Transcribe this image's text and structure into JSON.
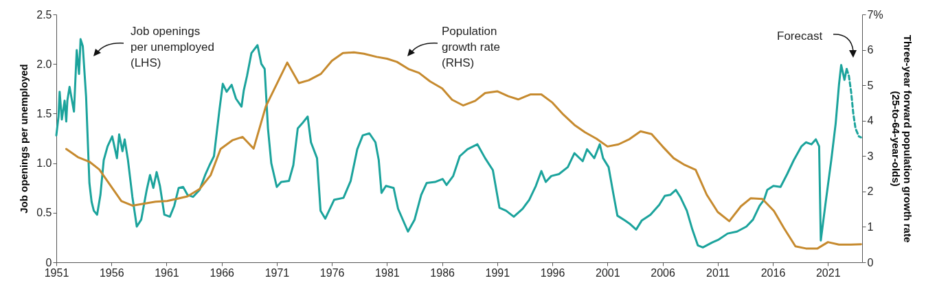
{
  "chart_data": {
    "type": "line",
    "ylabel": "Job openings per unemployed",
    "y2label": "Three-year forward population growth rate\n(25-to-64-year-olds)",
    "annotations": [
      "Job openings\nper unemployed\n(LHS)",
      "Population\ngrowth rate\n(RHS)",
      "Forecast"
    ],
    "xlim": [
      1951,
      2024.1
    ],
    "xticks": [
      1951,
      1956,
      1961,
      1966,
      1971,
      1976,
      1981,
      1986,
      1991,
      1996,
      2001,
      2006,
      2011,
      2016,
      2021
    ],
    "ylim": [
      0,
      2.5
    ],
    "yticks": [
      0,
      0.5,
      {
        "value": 1,
        "label": "1.0"
      },
      1.5,
      {
        "value": 2,
        "label": "2.0"
      },
      2.5
    ],
    "y2lim": [
      0,
      7
    ],
    "y2ticks": [
      0,
      1,
      2,
      3,
      4,
      5,
      6,
      {
        "value": 7,
        "label": "7%"
      }
    ],
    "grid": false,
    "marker": "none",
    "series": [
      {
        "color": "#1ba39c",
        "line_style": "solid",
        "x": [
          1951.0,
          1951.2,
          1951.3,
          1951.5,
          1951.75,
          1951.9,
          1952.0,
          1952.2,
          1952.6,
          1952.85,
          1953.06,
          1953.2,
          1953.4,
          1953.7,
          1954.0,
          1954.2,
          1954.4,
          1954.7,
          1955.0,
          1955.3,
          1955.65,
          1956.07,
          1956.5,
          1956.7,
          1957.0,
          1957.2,
          1957.5,
          1957.9,
          1958.3,
          1958.7,
          1959.2,
          1959.5,
          1959.8,
          1960.1,
          1960.4,
          1960.8,
          1961.3,
          1961.7,
          1962.1,
          1962.5,
          1962.9,
          1963.4,
          1964.0,
          1964.5,
          1964.9,
          1965.3,
          1965.8,
          1966.1,
          1966.45,
          1966.9,
          1967.3,
          1967.8,
          1968.0,
          1968.3,
          1968.7,
          1969.25,
          1969.6,
          1969.9,
          1970.2,
          1970.5,
          1971.0,
          1971.4,
          1972.1,
          1972.5,
          1972.9,
          1973.3,
          1973.8,
          1974.1,
          1974.65,
          1974.97,
          1975.4,
          1976.2,
          1977.05,
          1977.7,
          1978.3,
          1978.8,
          1979.4,
          1979.95,
          1980.25,
          1980.5,
          1980.9,
          1981.6,
          1982.0,
          1982.9,
          1983.5,
          1984.1,
          1984.6,
          1985.35,
          1986.05,
          1986.4,
          1987.0,
          1987.6,
          1988.3,
          1989.2,
          1989.9,
          1990.6,
          1991.2,
          1991.8,
          1992.5,
          1993.3,
          1993.9,
          1994.5,
          1995.0,
          1995.4,
          1995.9,
          1996.6,
          1997.4,
          1998.0,
          1998.75,
          1999.15,
          1999.8,
          2000.3,
          2000.6,
          2001.1,
          2001.55,
          2001.9,
          2002.6,
          2003.0,
          2003.6,
          2004.1,
          2004.9,
          2005.7,
          2006.2,
          2006.7,
          2007.2,
          2007.6,
          2008.2,
          2008.7,
          2009.2,
          2009.65,
          2010.5,
          2011.1,
          2011.9,
          2012.75,
          2013.6,
          2014.2,
          2014.8,
          2015.2,
          2015.5,
          2016.05,
          2016.7,
          2017.3,
          2017.9,
          2018.6,
          2019.0,
          2019.5,
          2019.9,
          2020.2,
          2020.35,
          2020.8,
          2021.3,
          2021.7,
          2022.0,
          2022.2,
          2022.5,
          2022.7
        ],
        "values": [
          1.28,
          1.47,
          1.72,
          1.44,
          1.63,
          1.42,
          1.63,
          1.77,
          1.52,
          2.14,
          1.9,
          2.25,
          2.18,
          1.67,
          0.8,
          0.61,
          0.52,
          0.48,
          0.68,
          1.03,
          1.17,
          1.27,
          1.05,
          1.29,
          1.12,
          1.24,
          1.03,
          0.66,
          0.36,
          0.43,
          0.73,
          0.88,
          0.75,
          0.91,
          0.77,
          0.48,
          0.46,
          0.57,
          0.75,
          0.76,
          0.68,
          0.66,
          0.73,
          0.88,
          0.98,
          1.07,
          1.54,
          1.8,
          1.72,
          1.79,
          1.65,
          1.57,
          1.73,
          1.88,
          2.11,
          2.19,
          2.0,
          1.95,
          1.35,
          1.0,
          0.76,
          0.81,
          0.82,
          0.98,
          1.35,
          1.4,
          1.47,
          1.21,
          1.05,
          0.52,
          0.44,
          0.63,
          0.65,
          0.82,
          1.14,
          1.28,
          1.3,
          1.21,
          1.03,
          0.7,
          0.77,
          0.75,
          0.54,
          0.31,
          0.43,
          0.68,
          0.8,
          0.81,
          0.84,
          0.78,
          0.87,
          1.07,
          1.14,
          1.19,
          1.05,
          0.93,
          0.55,
          0.52,
          0.46,
          0.54,
          0.63,
          0.77,
          0.92,
          0.81,
          0.87,
          0.89,
          0.96,
          1.1,
          1.02,
          1.14,
          1.05,
          1.19,
          1.05,
          0.96,
          0.68,
          0.47,
          0.42,
          0.39,
          0.33,
          0.42,
          0.48,
          0.58,
          0.67,
          0.68,
          0.73,
          0.66,
          0.52,
          0.33,
          0.17,
          0.15,
          0.2,
          0.23,
          0.29,
          0.31,
          0.36,
          0.43,
          0.57,
          0.63,
          0.73,
          0.77,
          0.76,
          0.89,
          1.03,
          1.17,
          1.21,
          1.19,
          1.24,
          1.17,
          0.22,
          0.61,
          1.03,
          1.4,
          1.79,
          1.99,
          1.84,
          1.95
        ]
      },
      {
        "color": "#1ba39c",
        "line_style": "dashed",
        "x": [
          2022.7,
          2022.9,
          2023.1,
          2023.3,
          2023.5,
          2023.8,
          2024.0
        ],
        "values": [
          1.95,
          1.88,
          1.72,
          1.5,
          1.35,
          1.27,
          1.26
        ]
      },
      {
        "color": "#c68a2e",
        "line_style": "solid",
        "axis": "y2",
        "x": [
          1951.9,
          1952.95,
          1954.0,
          1954.9,
          1956.9,
          1957.9,
          1960.0,
          1961.05,
          1962.9,
          1964.0,
          1965.0,
          1965.9,
          1967.0,
          1967.9,
          1968.9,
          1970.0,
          1971.95,
          1973.0,
          1973.9,
          1975.0,
          1976.0,
          1977.0,
          1978.0,
          1978.9,
          1980.07,
          1981.0,
          1981.9,
          1983.0,
          1983.9,
          1984.9,
          1986.0,
          1986.9,
          1987.9,
          1989.0,
          1989.9,
          1991.0,
          1992.0,
          1992.9,
          1994.0,
          1995.0,
          1996.0,
          1997.0,
          1998.0,
          1998.97,
          2000.0,
          2001.0,
          2002.0,
          2003.0,
          2004.0,
          2005.0,
          2006.0,
          2007.0,
          2008.0,
          2009.0,
          2010.0,
          2011.0,
          2012.05,
          2013.1,
          2014.0,
          2015.05,
          2016.1,
          2017.0,
          2018.05,
          2019.0,
          2020.05,
          2021.0,
          2022.0,
          2023.05,
          2024.0
        ],
        "values": [
          3.2,
          2.97,
          2.84,
          2.62,
          1.73,
          1.6,
          1.71,
          1.73,
          1.86,
          2.07,
          2.46,
          3.2,
          3.45,
          3.54,
          3.21,
          4.4,
          5.64,
          5.06,
          5.14,
          5.32,
          5.69,
          5.91,
          5.93,
          5.89,
          5.8,
          5.75,
          5.66,
          5.45,
          5.35,
          5.11,
          4.91,
          4.59,
          4.43,
          4.56,
          4.78,
          4.83,
          4.69,
          4.6,
          4.74,
          4.74,
          4.51,
          4.17,
          3.88,
          3.67,
          3.49,
          3.27,
          3.33,
          3.48,
          3.7,
          3.62,
          3.27,
          2.94,
          2.75,
          2.61,
          1.91,
          1.42,
          1.16,
          1.58,
          1.81,
          1.79,
          1.45,
          0.97,
          0.45,
          0.39,
          0.39,
          0.57,
          0.5,
          0.5,
          0.51
        ]
      }
    ]
  }
}
